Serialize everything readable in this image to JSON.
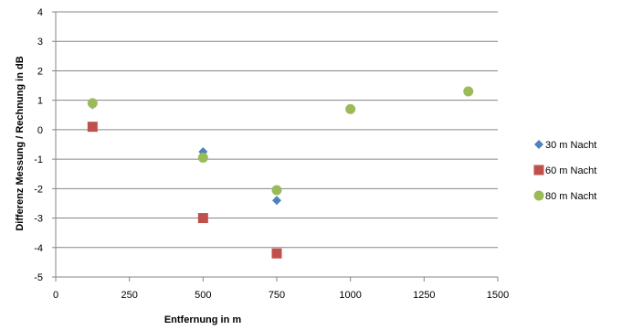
{
  "chart_data": {
    "type": "scatter",
    "title": "",
    "xlabel": "Entfernung in m",
    "ylabel": "Differenz Messung / Rechnung  in dB",
    "xlim": [
      0,
      1500
    ],
    "ylim": [
      -5,
      4
    ],
    "x_ticks": [
      0,
      250,
      500,
      750,
      1000,
      1250,
      1500
    ],
    "y_ticks": [
      -5,
      -4,
      -3,
      -2,
      -1,
      0,
      1,
      2,
      3,
      4
    ],
    "grid": "horizontal",
    "legend_position": "right",
    "series": [
      {
        "name": "30 m Nacht",
        "marker": "diamond",
        "color": "#4F81BD",
        "points": [
          {
            "x": 125,
            "y": 0.85
          },
          {
            "x": 500,
            "y": -0.75
          },
          {
            "x": 750,
            "y": -2.4
          }
        ]
      },
      {
        "name": "60 m Nacht",
        "marker": "square",
        "color": "#C0504D",
        "points": [
          {
            "x": 125,
            "y": 0.1
          },
          {
            "x": 500,
            "y": -3.0
          },
          {
            "x": 750,
            "y": -4.2
          }
        ]
      },
      {
        "name": "80 m Nacht",
        "marker": "circle",
        "color": "#9BBB59",
        "points": [
          {
            "x": 125,
            "y": 0.9
          },
          {
            "x": 500,
            "y": -0.95
          },
          {
            "x": 750,
            "y": -2.05
          },
          {
            "x": 1000,
            "y": 0.7
          },
          {
            "x": 1400,
            "y": 1.3
          }
        ]
      }
    ]
  }
}
